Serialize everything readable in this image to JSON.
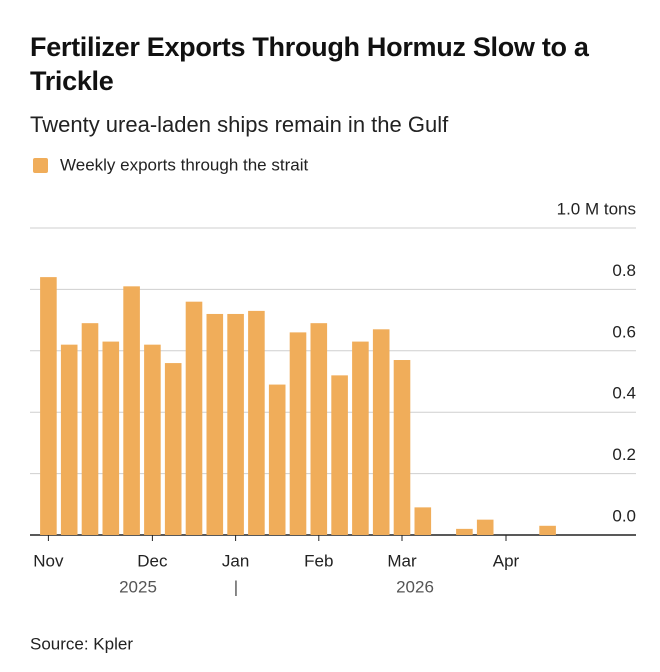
{
  "chart_data": {
    "type": "bar",
    "title": "Fertilizer Exports Through Hormuz Slow to a Trickle",
    "subtitle": "Twenty urea-laden ships remain in the Gulf",
    "series": [
      {
        "name": "Weekly exports through the strait",
        "color": "#F0AD5A",
        "values": [
          0.84,
          0.62,
          0.69,
          0.63,
          0.81,
          0.62,
          0.56,
          0.76,
          0.72,
          0.72,
          0.73,
          0.49,
          0.66,
          0.69,
          0.52,
          0.63,
          0.67,
          0.57,
          0.09,
          0,
          0.02,
          0.05,
          0,
          0,
          0.03
        ]
      }
    ],
    "categories": [
      "Nov",
      null,
      null,
      null,
      null,
      "Dec",
      null,
      null,
      null,
      "Jan",
      null,
      null,
      null,
      "Feb",
      null,
      null,
      null,
      "Mar",
      null,
      null,
      null,
      null,
      "Apr",
      null,
      null
    ],
    "year_labels": [
      "2025",
      "|",
      "2026"
    ],
    "ylim": [
      0,
      1
    ],
    "yticks": [
      {
        "value": 0,
        "label": "0.0"
      },
      0.2,
      0.4,
      0.6,
      0.8,
      {
        "value": 1,
        "label": "1.0 M tons"
      }
    ],
    "grid": true,
    "source": "Source: Kpler"
  }
}
